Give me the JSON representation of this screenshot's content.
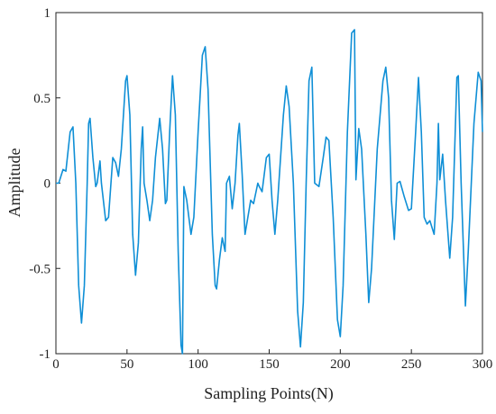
{
  "chart_data": {
    "type": "line",
    "xlabel": "Sampling Points(N)",
    "ylabel": "Amplitude",
    "xlim": [
      0,
      300
    ],
    "ylim": [
      -1,
      1
    ],
    "xticks": [
      0,
      50,
      100,
      150,
      200,
      250,
      300
    ],
    "yticks": [
      -1,
      -0.5,
      0,
      0.5,
      1
    ],
    "series": [
      {
        "color": "#0f8fd6",
        "x": [
          0,
          2,
          5,
          7,
          10,
          12,
          14,
          16,
          18,
          20,
          22,
          23,
          24,
          26,
          28,
          29,
          31,
          32,
          35,
          37,
          40,
          42,
          44,
          46,
          49,
          50,
          52,
          54,
          56,
          58,
          60,
          61,
          62,
          64,
          66,
          68,
          70,
          73,
          75,
          77,
          78,
          80,
          82,
          84,
          86,
          88,
          89,
          90,
          92,
          95,
          97,
          100,
          103,
          105,
          107,
          110,
          112,
          113,
          115,
          117,
          119,
          120,
          122,
          124,
          126,
          128,
          129,
          131,
          133,
          135,
          137,
          139,
          142,
          143,
          145,
          148,
          150,
          152,
          154,
          156,
          160,
          162,
          164,
          167,
          170,
          172,
          174,
          176,
          178,
          180,
          182,
          185,
          188,
          190,
          192,
          195,
          198,
          200,
          202,
          205,
          208,
          210,
          211,
          213,
          215,
          218,
          220,
          222,
          226,
          230,
          232,
          234,
          236,
          238,
          240,
          242,
          245,
          248,
          250,
          253,
          255,
          257,
          259,
          261,
          263,
          266,
          268,
          269,
          270,
          272,
          274,
          277,
          279,
          282,
          283,
          285,
          288,
          290,
          294,
          297,
          299,
          300
        ],
        "values": [
          0,
          0,
          0.08,
          0.07,
          0.3,
          0.33,
          0,
          -0.6,
          -0.82,
          -0.6,
          0,
          0.35,
          0.38,
          0.15,
          -0.02,
          0,
          0.13,
          0,
          -0.22,
          -0.2,
          0.15,
          0.12,
          0.04,
          0.2,
          0.6,
          0.63,
          0.4,
          -0.3,
          -0.54,
          -0.35,
          0.2,
          0.33,
          0,
          -0.1,
          -0.22,
          -0.1,
          0.15,
          0.38,
          0.2,
          -0.12,
          -0.1,
          0.3,
          0.63,
          0.4,
          -0.4,
          -0.95,
          -1,
          -0.02,
          -0.1,
          -0.3,
          -0.2,
          0.3,
          0.75,
          0.8,
          0.55,
          -0.3,
          -0.6,
          -0.62,
          -0.45,
          -0.32,
          -0.4,
          0,
          0.04,
          -0.15,
          0,
          0.28,
          0.35,
          0.05,
          -0.3,
          -0.2,
          -0.1,
          -0.12,
          0,
          -0.02,
          -0.05,
          0.15,
          0.17,
          -0.1,
          -0.3,
          -0.1,
          0.4,
          0.57,
          0.45,
          0,
          -0.75,
          -0.96,
          -0.7,
          0,
          0.6,
          0.68,
          0,
          -0.02,
          0.15,
          0.27,
          0.25,
          -0.2,
          -0.8,
          -0.9,
          -0.6,
          0.3,
          0.88,
          0.9,
          0.02,
          0.32,
          0.2,
          -0.3,
          -0.7,
          -0.5,
          0.2,
          0.6,
          0.68,
          0.5,
          -0.1,
          -0.33,
          0,
          0.01,
          -0.08,
          -0.16,
          -0.15,
          0.3,
          0.62,
          0.3,
          -0.2,
          -0.24,
          -0.22,
          -0.3,
          0,
          0.35,
          0.02,
          0.17,
          -0.1,
          -0.44,
          -0.2,
          0.62,
          0.63,
          0,
          -0.72,
          -0.4,
          0.35,
          0.65,
          0.6,
          0.3
        ]
      }
    ]
  }
}
